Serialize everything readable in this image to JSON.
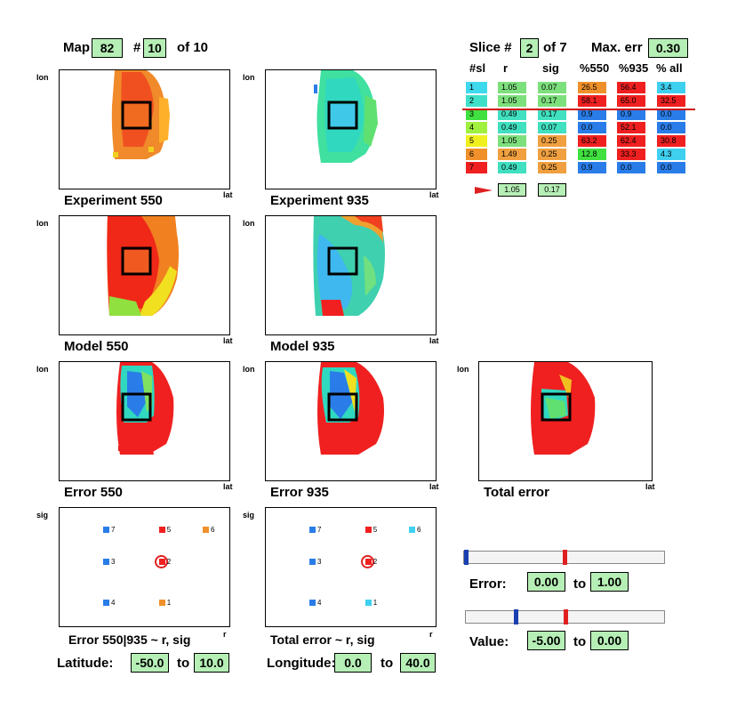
{
  "header": {
    "map_label": "Map",
    "map_value": "82",
    "index_label": "#",
    "index_value": "10",
    "index_of": "of 10",
    "slice_label": "Slice  #",
    "slice_value": "2",
    "slice_of": "of 7",
    "maxerr_label": "Max. err",
    "maxerr_value": "0.30"
  },
  "axes": {
    "y": "lon",
    "x": "lat",
    "sig": "sig",
    "r": "r"
  },
  "panels": {
    "exp550": "Experiment 550",
    "exp935": "Experiment 935",
    "model550": "Model 550",
    "model935": "Model 935",
    "err550": "Error 550",
    "err935": "Error 935",
    "toterr": "Total error",
    "scatter1": "Error 550|935 ~ r, sig",
    "scatter2": "Total error ~ r, sig"
  },
  "table": {
    "headers": [
      "#sl",
      "r",
      "sig",
      "%550",
      "%935",
      "% all"
    ],
    "rows": [
      {
        "sl": "1",
        "r": "1.05",
        "sig": "0.07",
        "p550": "26.5",
        "p935": "56.4",
        "pall": "3.4",
        "c": [
          "#3fd9ee",
          "#7de07d",
          "#7de07d",
          "#f0902a",
          "#f02020",
          "#3fd0f0"
        ]
      },
      {
        "sl": "2",
        "r": "1.05",
        "sig": "0.17",
        "p550": "58.1",
        "p935": "65.0",
        "pall": "32.5",
        "c": [
          "#3fe0c8",
          "#7de07d",
          "#7de07d",
          "#f02020",
          "#f02020",
          "#f02020"
        ]
      },
      {
        "sl": "3",
        "r": "0.49",
        "sig": "0.17",
        "p550": "0.9",
        "p935": "0.9",
        "pall": "0.0",
        "c": [
          "#40e040",
          "#40e0c0",
          "#40e0c0",
          "#2a7de8",
          "#2a7de8",
          "#2a7de8"
        ]
      },
      {
        "sl": "4",
        "r": "0.49",
        "sig": "0.07",
        "p550": "0.0",
        "p935": "52.1",
        "pall": "0.0",
        "c": [
          "#a0f040",
          "#40e0c0",
          "#40e0c0",
          "#2a7de8",
          "#f02020",
          "#2a7de8"
        ]
      },
      {
        "sl": "5",
        "r": "1.05",
        "sig": "0.25",
        "p550": "63.2",
        "p935": "62.4",
        "pall": "30.8",
        "c": [
          "#f0f020",
          "#7de07d",
          "#f0a040",
          "#f02020",
          "#f02020",
          "#f02020"
        ]
      },
      {
        "sl": "6",
        "r": "1.49",
        "sig": "0.25",
        "p550": "12.8",
        "p935": "33.3",
        "pall": "4.3",
        "c": [
          "#f0902a",
          "#f0a040",
          "#f0a040",
          "#40e040",
          "#f02020",
          "#3fd0f0"
        ]
      },
      {
        "sl": "7",
        "r": "0.49",
        "sig": "0.25",
        "p550": "0.9",
        "p935": "0.0",
        "pall": "0.0",
        "c": [
          "#f02020",
          "#40e0c0",
          "#f0a040",
          "#2a7de8",
          "#2a7de8",
          "#2a7de8"
        ]
      }
    ],
    "current_r": "1.05",
    "current_sig": "0.17"
  },
  "scatter1_points": [
    {
      "id": "7",
      "r": 0.49,
      "sig": 0.25,
      "color": "#2a7de8"
    },
    {
      "id": "5",
      "r": 1.05,
      "sig": 0.25,
      "color": "#f02020"
    },
    {
      "id": "6",
      "r": 1.49,
      "sig": 0.25,
      "color": "#f0902a"
    },
    {
      "id": "3",
      "r": 0.49,
      "sig": 0.17,
      "color": "#2a7de8"
    },
    {
      "id": "2",
      "r": 1.05,
      "sig": 0.17,
      "color": "#f02020",
      "selected": true
    },
    {
      "id": "4",
      "r": 0.49,
      "sig": 0.07,
      "color": "#2a7de8"
    },
    {
      "id": "1",
      "r": 1.05,
      "sig": 0.07,
      "color": "#f0902a"
    }
  ],
  "scatter2_points": [
    {
      "id": "7",
      "r": 0.49,
      "sig": 0.25,
      "color": "#2a7de8"
    },
    {
      "id": "5",
      "r": 1.05,
      "sig": 0.25,
      "color": "#f02020"
    },
    {
      "id": "6",
      "r": 1.49,
      "sig": 0.25,
      "color": "#3fd0f0"
    },
    {
      "id": "3",
      "r": 0.49,
      "sig": 0.17,
      "color": "#2a7de8"
    },
    {
      "id": "2",
      "r": 1.05,
      "sig": 0.17,
      "color": "#f02020",
      "selected": true
    },
    {
      "id": "4",
      "r": 0.49,
      "sig": 0.07,
      "color": "#2a7de8"
    },
    {
      "id": "1",
      "r": 1.05,
      "sig": 0.07,
      "color": "#3fd0f0"
    }
  ],
  "error_range": {
    "label": "Error:",
    "from": "0.00",
    "to_label": "to",
    "to": "1.00"
  },
  "value_range": {
    "label": "Value:",
    "from": "-5.00",
    "to_label": "to",
    "to": "0.00"
  },
  "latitude": {
    "label": "Latitude:",
    "from": "-50.0",
    "to_label": "to",
    "to": "10.0"
  },
  "longitude": {
    "label": "Longitude:",
    "from": "0.0",
    "to_label": "to",
    "to": "40.0"
  },
  "colors": {
    "field_bg": "#b6efb6",
    "red": "#f02020",
    "blue": "#2a7de8"
  }
}
